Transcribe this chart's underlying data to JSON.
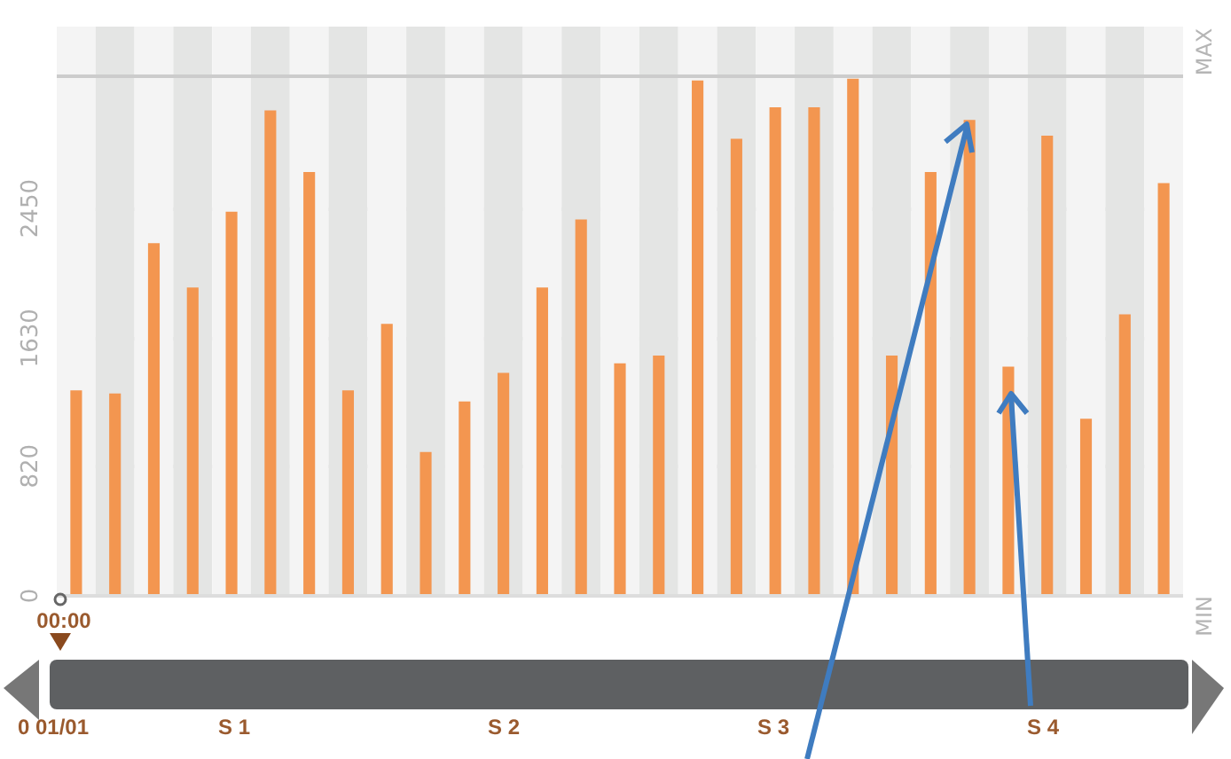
{
  "chart_data": {
    "type": "bar",
    "categories": [
      null,
      null,
      null,
      null,
      null,
      null,
      null,
      null,
      null,
      null,
      null,
      null,
      null,
      null,
      null,
      null,
      null,
      null,
      null,
      null,
      null,
      null,
      null,
      null,
      null,
      null,
      null,
      null,
      null
    ],
    "values": [
      1300,
      1280,
      2230,
      1950,
      2430,
      3070,
      2680,
      1300,
      1720,
      910,
      1230,
      1410,
      1950,
      2380,
      1470,
      1520,
      3260,
      2890,
      3090,
      3090,
      3270,
      1520,
      2680,
      3010,
      1450,
      2910,
      1120,
      1780,
      2610
    ],
    "color": "#f39650",
    "ylim": [
      0,
      3600
    ],
    "yticks": [
      0,
      820,
      1630,
      2450
    ],
    "grid": "y",
    "tick_labels": "y",
    "ref_lines": [
      {
        "axis": "y",
        "value": 3290,
        "label": "MAX",
        "color": "#cccccc"
      },
      {
        "axis": "y",
        "value": 0,
        "label": "MIN",
        "color": "#dddddd"
      }
    ],
    "annotations": [
      "00:00",
      "0 01/01",
      "S 1",
      "S 2",
      "S 3",
      "S 4"
    ]
  }
}
